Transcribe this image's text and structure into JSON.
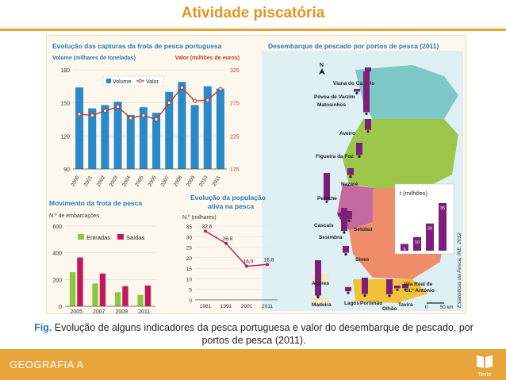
{
  "slide": {
    "title": "Atividade piscatória",
    "caption_label": "Fig.",
    "caption_text": "Evolução de alguns indicadores da pesca portuguesa e valor do desembarque de pescado, por portos de pesca (2011).",
    "footer": "GEOGRAFIA A",
    "logo_text": "Texto"
  },
  "colors": {
    "accent": "#e7a53b",
    "title": "#e0961f",
    "volume_bar": "#2a8ac8",
    "valor_line": "#c0392b",
    "entradas": "#8dc63f",
    "saidas": "#c2185b",
    "map_bar": "#7b1f7a"
  },
  "chart_data": [
    {
      "type": "bar",
      "title": "Evolução das capturas da frota de pesca portuguesa",
      "ylabel": "Volume (milhares de toneladas)",
      "y2label": "Valor (milhões de euros)",
      "categories": [
        "2000",
        "2001",
        "2002",
        "2003",
        "2004",
        "2005",
        "2006",
        "2007",
        "2008",
        "2009",
        "2010",
        "2011"
      ],
      "ylim": [
        90,
        180
      ],
      "yticks": [
        90,
        120,
        150,
        180
      ],
      "y2lim": [
        175,
        325
      ],
      "y2ticks": [
        175,
        225,
        275,
        325
      ],
      "series": [
        {
          "name": "Volume",
          "type": "bar",
          "axis": "left",
          "values": [
            164,
            145,
            148,
            151,
            139,
            146,
            141,
            160,
            169,
            148,
            165,
            163
          ]
        },
        {
          "name": "Valor",
          "type": "line",
          "axis": "right",
          "values": [
            258,
            256,
            263,
            269,
            252,
            256,
            250,
            275,
            298,
            278,
            279,
            296
          ]
        }
      ]
    },
    {
      "type": "bar",
      "title": "Movimento da frota de pesca",
      "ylabel": "N.º de embarcações",
      "categories": [
        "2005",
        "2007",
        "2009",
        "2011"
      ],
      "ylim": [
        0,
        600
      ],
      "yticks": [
        0,
        200,
        400,
        600
      ],
      "series": [
        {
          "name": "Entradas",
          "values": [
            255,
            170,
            105,
            85
          ]
        },
        {
          "name": "Saídas",
          "values": [
            365,
            245,
            150,
            155
          ]
        }
      ]
    },
    {
      "type": "line",
      "title": "Evolução da população ativa na pesca",
      "ylabel": "N.º (milhares)",
      "x": [
        "1981",
        "1991",
        "2001",
        "2011"
      ],
      "values": [
        32.6,
        26.8,
        16.0,
        16.8
      ],
      "labels": [
        "32,6",
        "26,8",
        "16,0",
        "16,8"
      ],
      "ylim": [
        0,
        35
      ],
      "yticks": [
        0,
        5,
        10,
        15,
        20,
        25,
        30,
        35
      ]
    },
    {
      "type": "bar",
      "title": "Desembarque de pescado por portos de pesca (2011)",
      "legend_title": "t (milhões)",
      "legend_values": [
        5,
        10,
        20,
        35
      ],
      "legend_labels": [
        "5",
        "10",
        "20",
        "35"
      ],
      "source": "Estatísticas da Pesca, INE, 2012",
      "north": "N",
      "scale": [
        "0",
        "50 km"
      ],
      "ports": [
        {
          "name": "Viana do Castelo",
          "value": 3
        },
        {
          "name": "Póvoa de Varzim",
          "value": 2
        },
        {
          "name": "Matosinhos",
          "value": 30
        },
        {
          "name": "Aveiro",
          "value": 8
        },
        {
          "name": "Figueira da Foz",
          "value": 9
        },
        {
          "name": "Nazaré",
          "value": 5
        },
        {
          "name": "Peniche",
          "value": 20
        },
        {
          "name": "Cascais",
          "value": 3
        },
        {
          "name": "Sesimbra",
          "value": 17
        },
        {
          "name": "Setúbal",
          "value": 6
        },
        {
          "name": "Sines",
          "value": 5
        },
        {
          "name": "Açores",
          "value": 25
        },
        {
          "name": "Madeira",
          "value": 5
        },
        {
          "name": "Lagos",
          "value": 3
        },
        {
          "name": "Portimão",
          "value": 12
        },
        {
          "name": "Olhão",
          "value": 11
        },
        {
          "name": "Tavira",
          "value": 2
        },
        {
          "name": "Vila Real de St.º António",
          "value": 3
        }
      ]
    }
  ]
}
